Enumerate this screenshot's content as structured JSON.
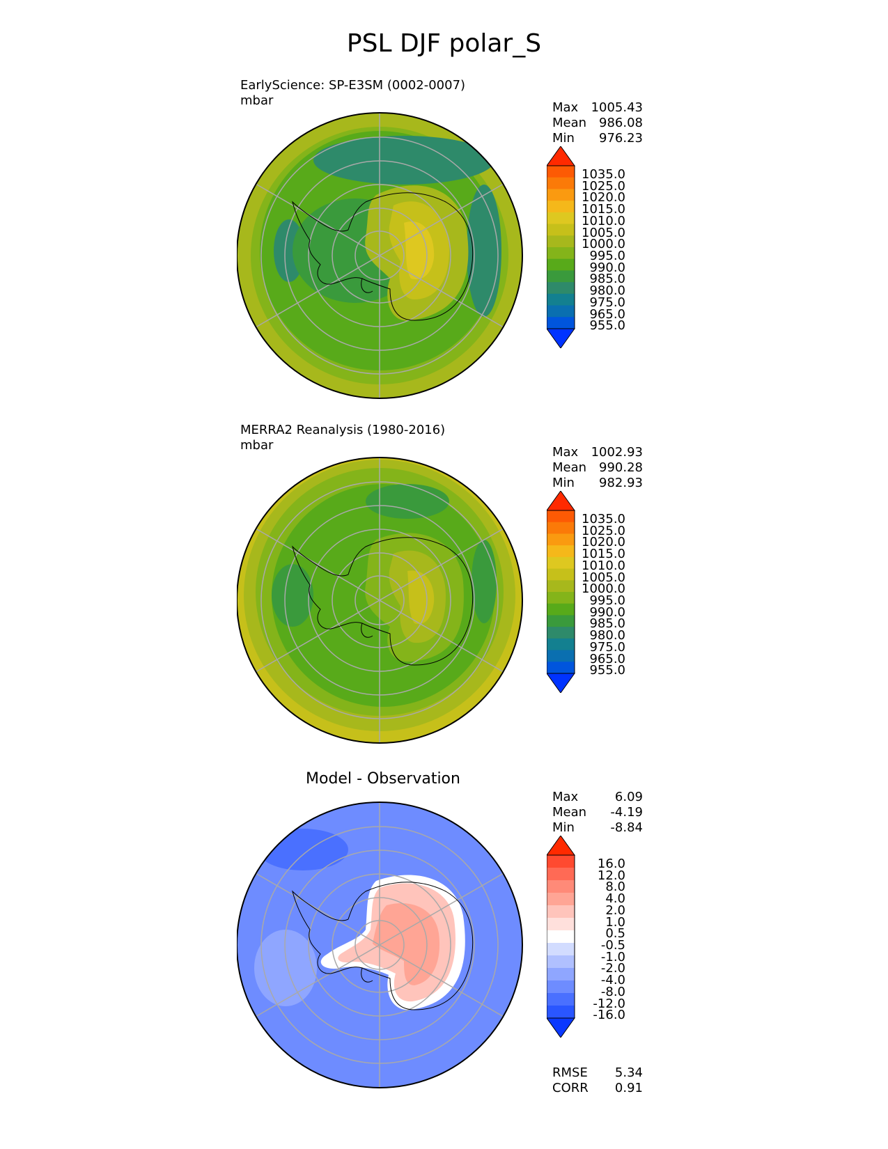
{
  "figure": {
    "title": "PSL DJF polar_S"
  },
  "panels": [
    {
      "id": "model",
      "title": "EarlyScience: SP-E3SM (0002-0007)",
      "units": "mbar",
      "stats": {
        "max_label": "Max",
        "max": "1005.43",
        "mean_label": "Mean",
        "mean": "986.08",
        "min_label": "Min",
        "min": "976.23"
      },
      "colorbar_ticks": [
        "1035.0",
        "1025.0",
        "1020.0",
        "1015.0",
        "1010.0",
        "1005.0",
        "1000.0",
        "995.0",
        "990.0",
        "985.0",
        "980.0",
        "975.0",
        "965.0",
        "955.0"
      ]
    },
    {
      "id": "obs",
      "title": "MERRA2 Reanalysis (1980-2016)",
      "units": "mbar",
      "stats": {
        "max_label": "Max",
        "max": "1002.93",
        "mean_label": "Mean",
        "mean": "990.28",
        "min_label": "Min",
        "min": "982.93"
      },
      "colorbar_ticks": [
        "1035.0",
        "1025.0",
        "1020.0",
        "1015.0",
        "1010.0",
        "1005.0",
        "1000.0",
        "995.0",
        "990.0",
        "985.0",
        "980.0",
        "975.0",
        "965.0",
        "955.0"
      ]
    },
    {
      "id": "diff",
      "title": "Model - Observation",
      "stats": {
        "max_label": "Max",
        "max": "6.09",
        "mean_label": "Mean",
        "mean": "-4.19",
        "min_label": "Min",
        "min": "-8.84"
      },
      "colorbar_ticks": [
        "16.0",
        "12.0",
        "8.0",
        "4.0",
        "2.0",
        "1.0",
        "0.5",
        "-0.5",
        "-1.0",
        "-2.0",
        "-4.0",
        "-8.0",
        "-12.0",
        "-16.0"
      ],
      "metrics": {
        "rmse_label": "RMSE",
        "rmse": "5.34",
        "corr_label": "CORR",
        "corr": "0.91"
      }
    }
  ],
  "colors": {
    "psl_scale": [
      "#0033ff",
      "#0055dd",
      "#0a6fb0",
      "#138090",
      "#2e8a6a",
      "#3a9a3c",
      "#58aa1a",
      "#84b41a",
      "#a7b81c",
      "#c6c01a",
      "#dec820",
      "#f5b81a",
      "#fa9a10",
      "#fb7a08",
      "#fd5a04",
      "#ff2a00"
    ],
    "diff_scale": [
      "#0a38ff",
      "#2a56ff",
      "#4a70ff",
      "#6e8cff",
      "#8fa6ff",
      "#b0c0ff",
      "#d2dcff",
      "#ffffff",
      "#ffe0dc",
      "#ffc4bb",
      "#ffa595",
      "#ff8a78",
      "#ff6a55",
      "#ff4a30",
      "#ff2a00"
    ],
    "grid": "#a9a9a9"
  },
  "icons": {
    "coastline": "antarctica-coastline-icon"
  }
}
